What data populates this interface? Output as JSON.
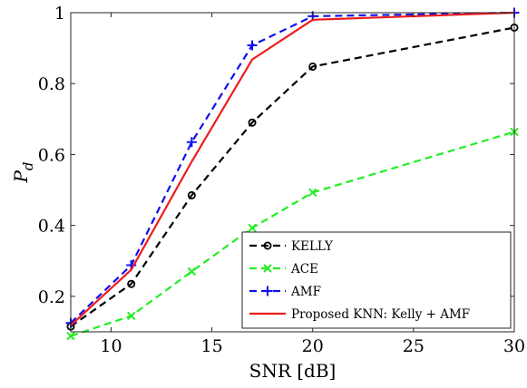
{
  "chart_data": {
    "type": "line",
    "xlabel": "SNR [dB]",
    "ylabel": "P",
    "ylabel_sub": "d",
    "xlim": [
      8,
      30
    ],
    "ylim": [
      0.1,
      1
    ],
    "xticks": [
      10,
      15,
      20,
      25,
      30
    ],
    "yticks": [
      0.2,
      0.4,
      0.6,
      0.8,
      1
    ],
    "ytick_labels": [
      "0.2",
      "0.4",
      "0.6",
      "0.8",
      "1"
    ],
    "grid": false,
    "legend_position": "bottom-right",
    "series": [
      {
        "name": "KELLY",
        "color": "#000000",
        "dash": "dashed",
        "marker": "circle",
        "x": [
          8,
          11,
          14,
          17,
          20,
          30
        ],
        "y": [
          0.115,
          0.235,
          0.485,
          0.69,
          0.848,
          0.958
        ]
      },
      {
        "name": "ACE",
        "color": "#22ee22",
        "dash": "dashed",
        "marker": "x",
        "x": [
          8,
          11,
          14,
          17,
          20,
          30
        ],
        "y": [
          0.088,
          0.145,
          0.27,
          0.393,
          0.493,
          0.664
        ]
      },
      {
        "name": "AMF",
        "color": "#1010ee",
        "dash": "dashed",
        "marker": "plus",
        "x": [
          8,
          11,
          14,
          17,
          20,
          30
        ],
        "y": [
          0.125,
          0.288,
          0.635,
          0.908,
          0.99,
          1.0
        ]
      },
      {
        "name": "Proposed KNN: Kelly + AMF",
        "color": "#ee1c1c",
        "dash": "solid",
        "marker": "none",
        "x": [
          8,
          11,
          14,
          17,
          20,
          30
        ],
        "y": [
          0.118,
          0.275,
          0.58,
          0.868,
          0.98,
          1.0
        ]
      }
    ]
  }
}
